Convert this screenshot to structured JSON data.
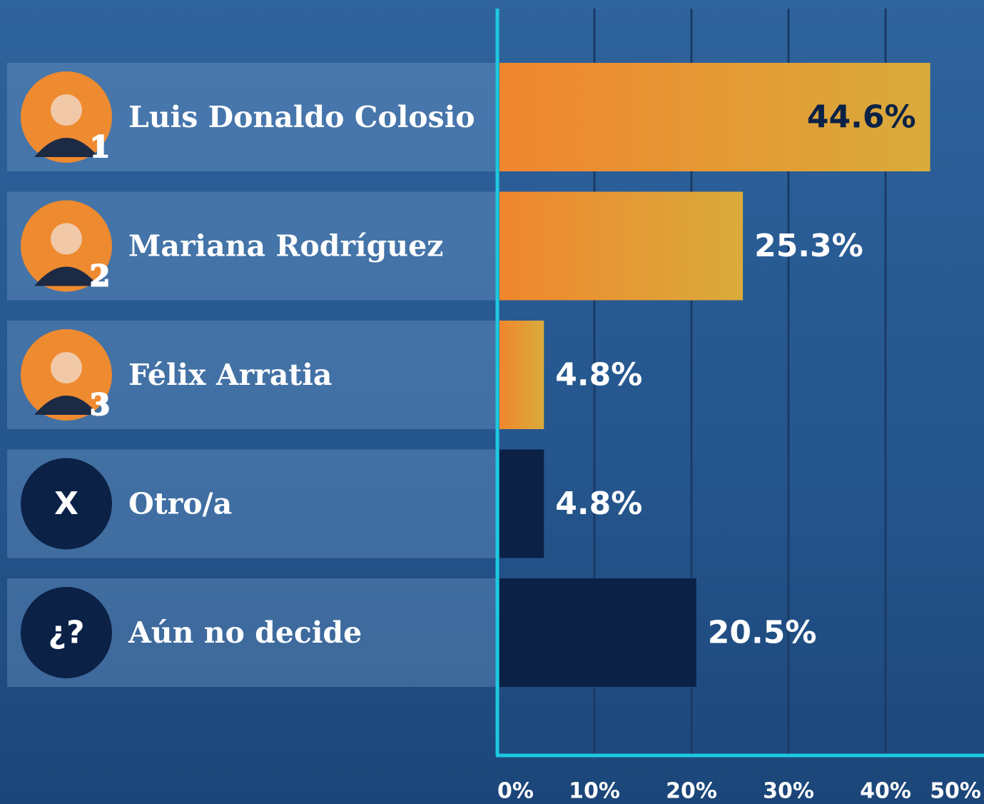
{
  "chart_data": {
    "type": "bar",
    "orientation": "horizontal",
    "categories": [
      "Luis Donaldo Colosio",
      "Mariana Rodríguez",
      "Félix Arratia",
      "Otro/a",
      "Aún no decide"
    ],
    "rank_labels": [
      "1",
      "2",
      "3",
      null,
      null
    ],
    "icon_labels": [
      null,
      null,
      null,
      "X",
      "¿?"
    ],
    "values": [
      44.6,
      25.3,
      4.8,
      4.8,
      20.5
    ],
    "value_labels": [
      "44.6%",
      "25.3%",
      "4.8%",
      "4.8%",
      "20.5%"
    ],
    "colors": [
      "#ee8a2f",
      "#ee8a2f",
      "#ee8a2f",
      "#0b2146",
      "#0b2146"
    ],
    "xlim": [
      0,
      50
    ],
    "xticks": [
      {
        "value": 0,
        "label": "0%"
      },
      {
        "value": 10,
        "label": "10%"
      },
      {
        "value": 20,
        "label": "20%"
      },
      {
        "value": 30,
        "label": "30%"
      },
      {
        "value": 40,
        "label": "40%"
      },
      {
        "value": 50,
        "label": "50%"
      }
    ],
    "grid": true
  }
}
